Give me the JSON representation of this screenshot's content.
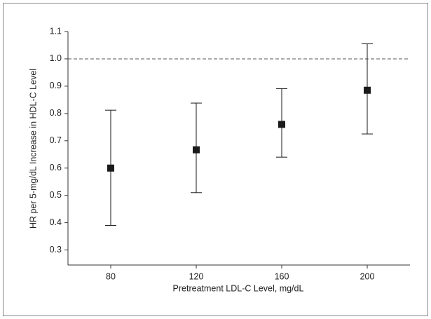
{
  "chart_data": {
    "type": "errorbar",
    "x_label": "Pretreatment LDL-C Level, mg/dL",
    "y_label": "HR per 5-mg/dL Increase in HDL-C Level",
    "series": [
      {
        "color": "#1a1a1a",
        "x": [
          80,
          120,
          160,
          200
        ],
        "values": [
          0.6,
          0.667,
          0.76,
          0.885
        ],
        "lower": [
          0.39,
          0.51,
          0.64,
          0.725
        ],
        "upper": [
          0.812,
          0.838,
          0.891,
          1.055
        ]
      }
    ],
    "reference_line": 1,
    "xlim": [
      60,
      220
    ],
    "xticks": [
      80,
      120,
      160,
      200
    ],
    "ylim": [
      0.245,
      1.1
    ],
    "yticks": [
      0.3,
      0.4,
      0.5,
      0.6,
      0.7,
      0.8,
      0.9,
      {
        "value": 1,
        "label": "1.0"
      },
      1.1
    ]
  }
}
